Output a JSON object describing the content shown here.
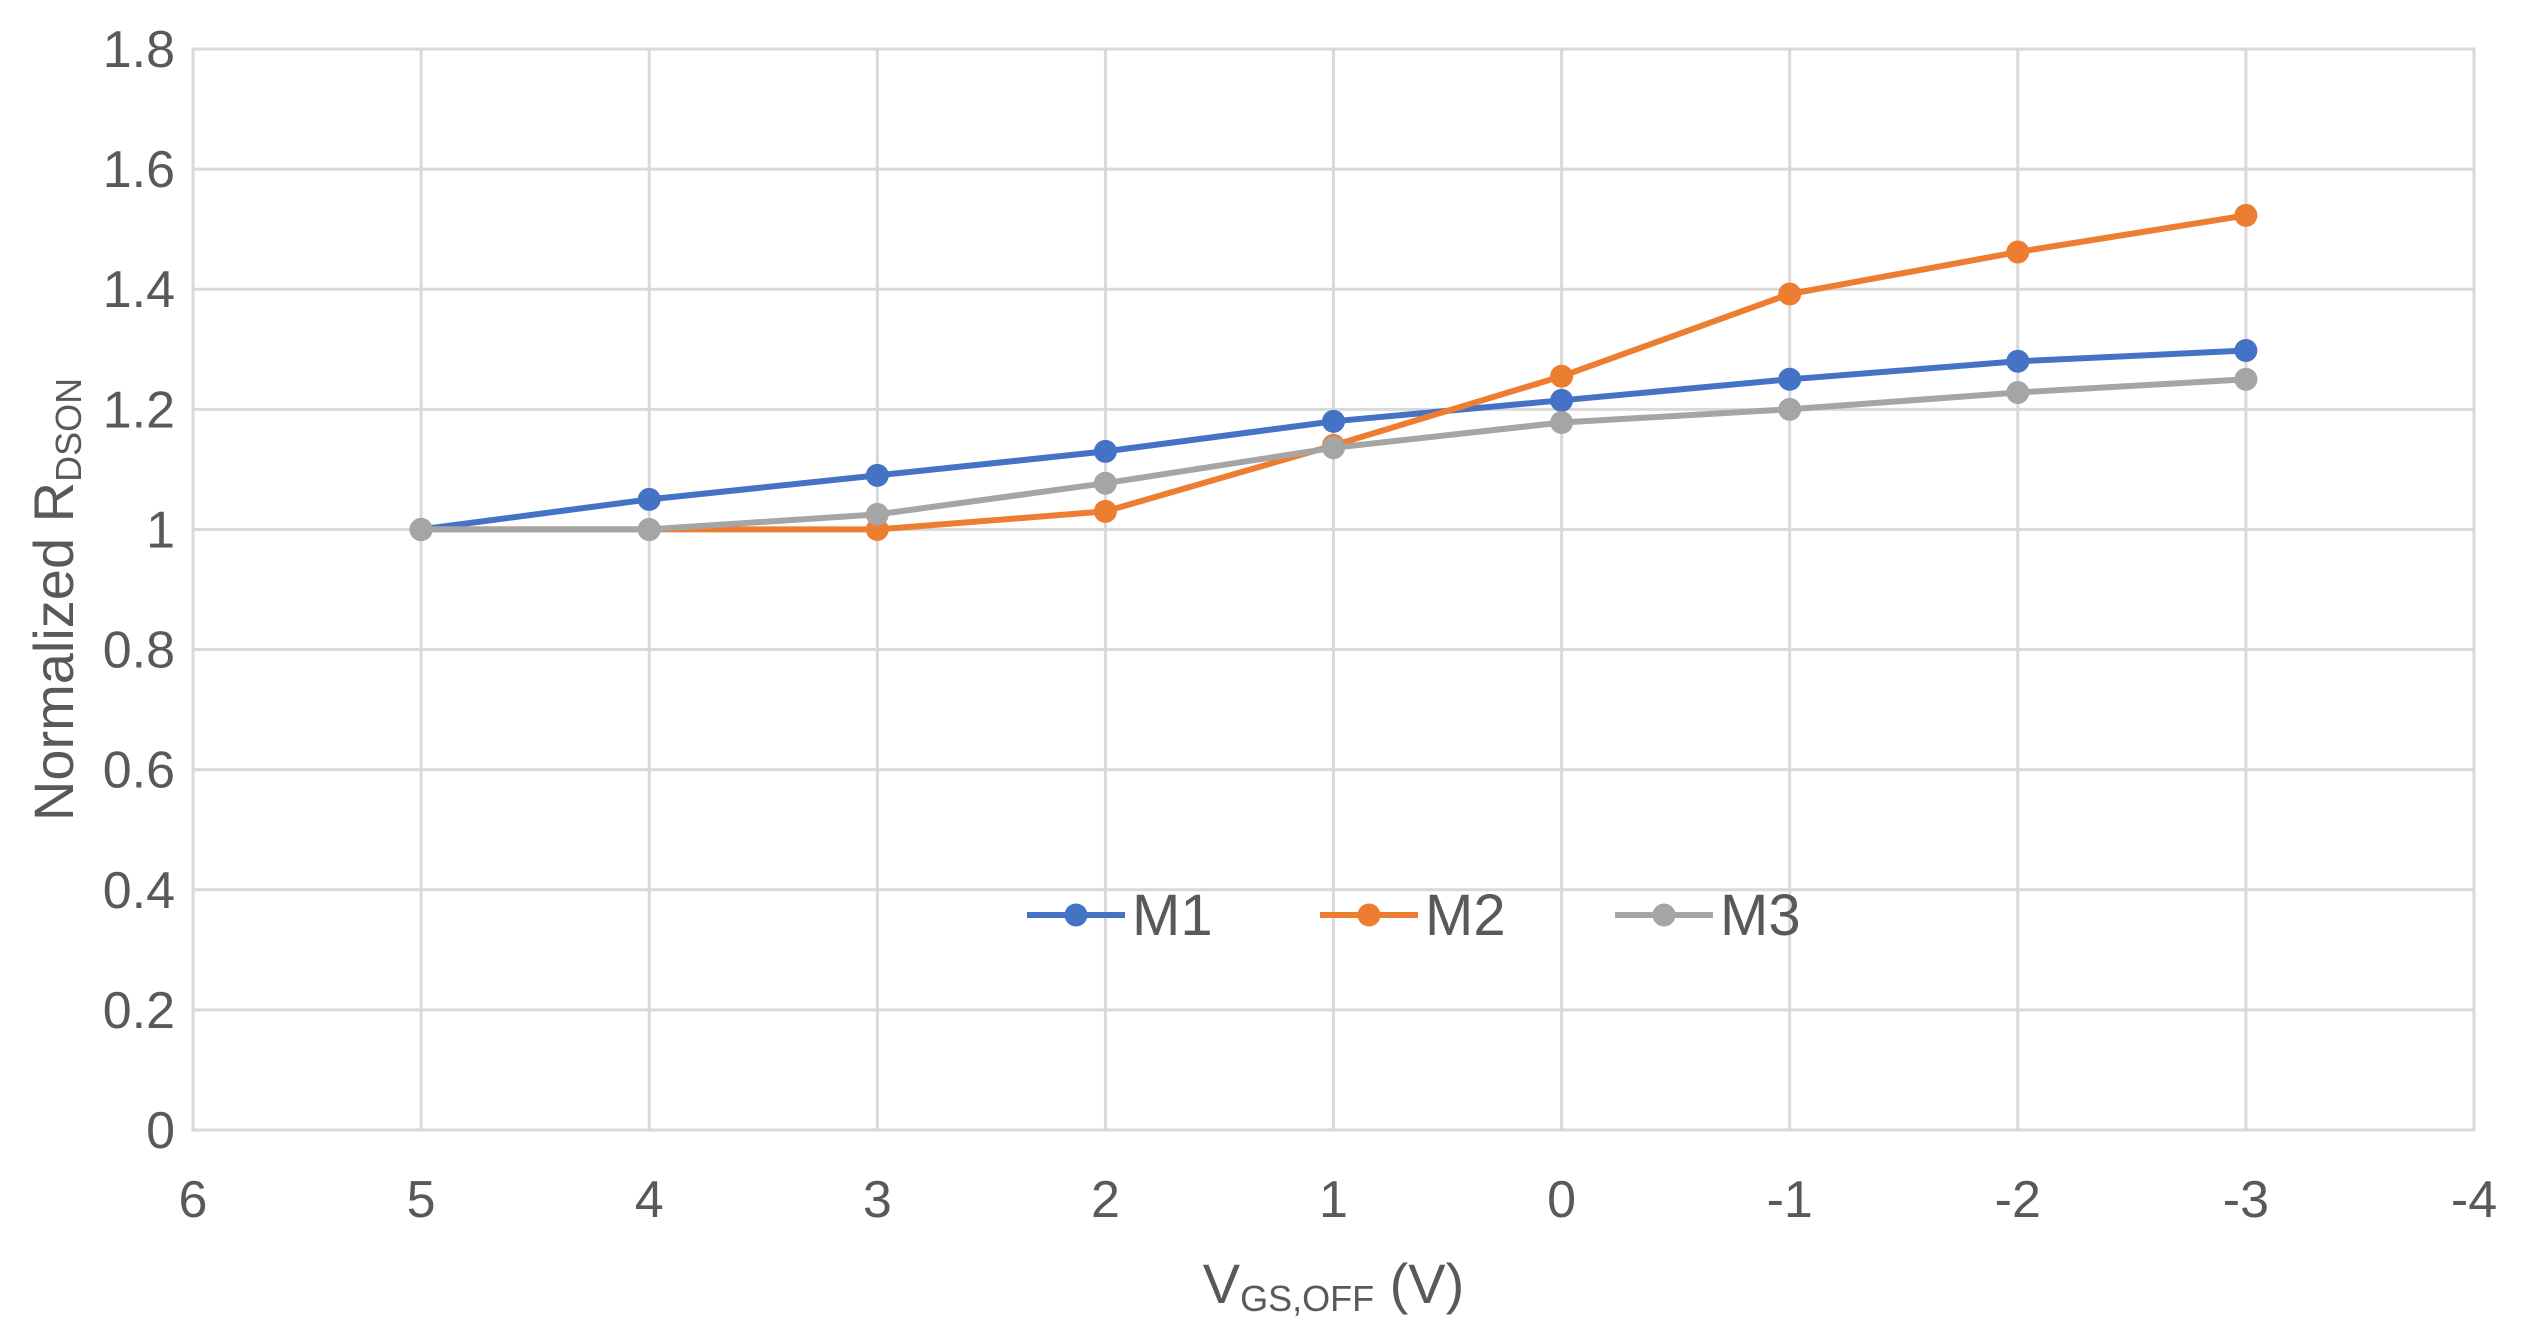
{
  "chart_data": {
    "type": "scatter",
    "mode": "lines+markers",
    "title": "",
    "xlabel": {
      "main": "V",
      "sub": "GS,OFF",
      "suffix": " (V)"
    },
    "ylabel": {
      "main": "Normalized R",
      "sub": "DSON"
    },
    "xlim": [
      6,
      -4
    ],
    "x_reversed": true,
    "ylim": [
      0,
      1.8
    ],
    "x_ticks": [
      6,
      5,
      4,
      3,
      2,
      1,
      0,
      -1,
      -2,
      -3,
      -4
    ],
    "x_tick_labels": [
      "6",
      "5",
      "4",
      "3",
      "2",
      "1",
      "0",
      "-1",
      "-2",
      "-3",
      "-4"
    ],
    "y_ticks": [
      0,
      0.2,
      0.4,
      0.6,
      0.8,
      1.0,
      1.2,
      1.4,
      1.6,
      1.8
    ],
    "y_tick_labels": [
      "0",
      "0.2",
      "0.4",
      "0.6",
      "0.8",
      "1",
      "1.2",
      "1.4",
      "1.6",
      "1.8"
    ],
    "grid": true,
    "legend_position": "center",
    "x": [
      5,
      4,
      3,
      2,
      1,
      0,
      -1,
      -2,
      -3
    ],
    "series": [
      {
        "name": "M1",
        "color": "#4472C4",
        "values": [
          1.0,
          1.05,
          1.09,
          1.13,
          1.18,
          1.215,
          1.25,
          1.28,
          1.298
        ]
      },
      {
        "name": "M2",
        "color": "#ED7D31",
        "values": [
          1.0,
          1.0,
          1.0,
          1.03,
          1.14,
          1.255,
          1.392,
          1.462,
          1.523
        ]
      },
      {
        "name": "M3",
        "color": "#A5A5A5",
        "values": [
          1.0,
          1.0,
          1.025,
          1.077,
          1.136,
          1.178,
          1.2,
          1.228,
          1.25
        ]
      }
    ]
  }
}
